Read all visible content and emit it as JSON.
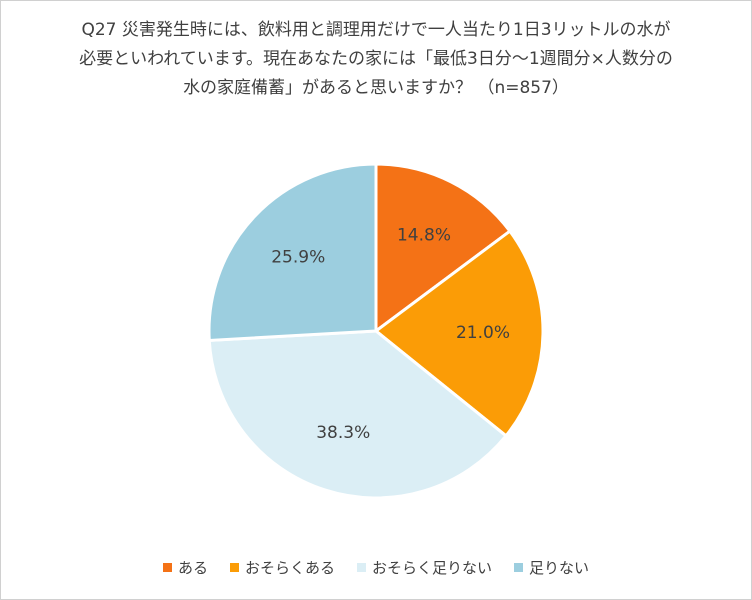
{
  "chart_data": {
    "type": "pie",
    "title_lines": [
      "Q27 災害発生時には、飲料用と調理用だけで一人当たり1日3リットルの水が",
      "必要といわれています。現在あなたの家には「最低3日分～1週間分×人数分の",
      "水の家庭備蓄」があると思いますか？ （n=857）"
    ],
    "categories": [
      "ある",
      "おそらくある",
      "おそらく足りない",
      "足りない"
    ],
    "values": [
      14.8,
      21.0,
      38.3,
      25.9
    ],
    "data_labels": [
      "14.8%",
      "21.0%",
      "38.3%",
      "25.9%"
    ],
    "colors": [
      "#f47216",
      "#fb9c06",
      "#dbeef5",
      "#9ccedf"
    ],
    "legend_position": "bottom",
    "start_angle_deg": 0,
    "direction": "clockwise"
  }
}
